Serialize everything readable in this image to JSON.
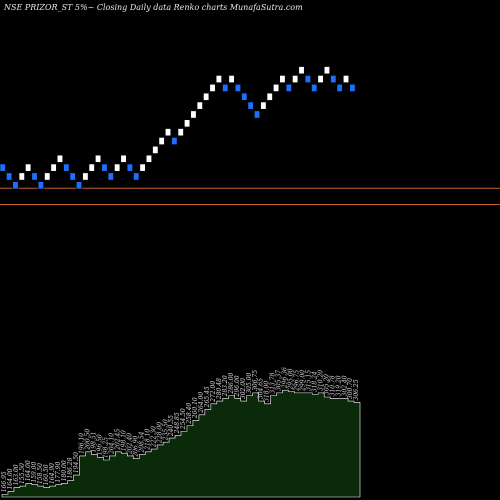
{
  "chart_data": {
    "type": "renko",
    "title": "NSE PRIZOR_ST 5%~ Closing Daily data Renko charts MunafaSutra.com",
    "colors": {
      "background": "#000000",
      "up_brick": "#ffffff",
      "down_brick": "#1e6fff",
      "reference_line": "#c8622a",
      "volume_fill": "#0a2a0a",
      "volume_edge": "#ffffff"
    },
    "reference_levels": [
      175,
      186
    ],
    "price_range": [
      90,
      300
    ],
    "bricks": [
      {
        "dir": "down",
        "level": 200
      },
      {
        "dir": "down",
        "level": 194
      },
      {
        "dir": "down",
        "level": 188
      },
      {
        "dir": "up",
        "level": 194
      },
      {
        "dir": "up",
        "level": 200
      },
      {
        "dir": "down",
        "level": 194
      },
      {
        "dir": "down",
        "level": 188
      },
      {
        "dir": "up",
        "level": 194
      },
      {
        "dir": "up",
        "level": 200
      },
      {
        "dir": "up",
        "level": 206
      },
      {
        "dir": "down",
        "level": 200
      },
      {
        "dir": "down",
        "level": 194
      },
      {
        "dir": "down",
        "level": 188
      },
      {
        "dir": "up",
        "level": 194
      },
      {
        "dir": "up",
        "level": 200
      },
      {
        "dir": "up",
        "level": 206
      },
      {
        "dir": "down",
        "level": 200
      },
      {
        "dir": "down",
        "level": 194
      },
      {
        "dir": "up",
        "level": 200
      },
      {
        "dir": "up",
        "level": 206
      },
      {
        "dir": "down",
        "level": 200
      },
      {
        "dir": "down",
        "level": 194
      },
      {
        "dir": "up",
        "level": 200
      },
      {
        "dir": "up",
        "level": 206
      },
      {
        "dir": "up",
        "level": 212
      },
      {
        "dir": "up",
        "level": 218
      },
      {
        "dir": "up",
        "level": 224
      },
      {
        "dir": "down",
        "level": 218
      },
      {
        "dir": "up",
        "level": 224
      },
      {
        "dir": "up",
        "level": 230
      },
      {
        "dir": "up",
        "level": 236
      },
      {
        "dir": "up",
        "level": 242
      },
      {
        "dir": "up",
        "level": 248
      },
      {
        "dir": "up",
        "level": 254
      },
      {
        "dir": "up",
        "level": 260
      },
      {
        "dir": "down",
        "level": 254
      },
      {
        "dir": "up",
        "level": 260
      },
      {
        "dir": "down",
        "level": 254
      },
      {
        "dir": "down",
        "level": 248
      },
      {
        "dir": "down",
        "level": 242
      },
      {
        "dir": "down",
        "level": 236
      },
      {
        "dir": "up",
        "level": 242
      },
      {
        "dir": "up",
        "level": 248
      },
      {
        "dir": "up",
        "level": 254
      },
      {
        "dir": "up",
        "level": 260
      },
      {
        "dir": "down",
        "level": 254
      },
      {
        "dir": "up",
        "level": 260
      },
      {
        "dir": "up",
        "level": 266
      },
      {
        "dir": "down",
        "level": 260
      },
      {
        "dir": "down",
        "level": 254
      },
      {
        "dir": "up",
        "level": 260
      },
      {
        "dir": "up",
        "level": 266
      },
      {
        "dir": "down",
        "level": 260
      },
      {
        "dir": "down",
        "level": 254
      },
      {
        "dir": "up",
        "level": 260
      },
      {
        "dir": "down",
        "level": 254
      }
    ],
    "volume": {
      "values": [
        2,
        4,
        7,
        8,
        10,
        9,
        8,
        7,
        8,
        9,
        10,
        12,
        16,
        30,
        33,
        31,
        29,
        27,
        30,
        33,
        32,
        30,
        28,
        31,
        33,
        35,
        38,
        40,
        43,
        45,
        48,
        52,
        56,
        60,
        64,
        68,
        70,
        72,
        74,
        72,
        70,
        74,
        76,
        70,
        68,
        74,
        76,
        78,
        77,
        76,
        76,
        76,
        75,
        76,
        73,
        72,
        72,
        72,
        70,
        69
      ],
      "labels": [
        "166.95",
        "164.00",
        "163.00",
        "155.50",
        "164.00",
        "159.00",
        "158.50",
        "160.50",
        "164.90",
        "177.90",
        "180.00",
        "186.28",
        "194.50",
        "196.10",
        "200.50",
        "198.51",
        "196.50",
        "198.25",
        "204.10",
        "202.45",
        "198.10",
        "202.40",
        "206.90",
        "208.54",
        "218.10",
        "222.30",
        "228.00",
        "235.50",
        "240.55",
        "248.85",
        "254.50",
        "258.40",
        "260.10",
        "264.00",
        "265.45",
        "272.00",
        "280.48",
        "283.20",
        "286.00",
        "296.00",
        "302.00",
        "305.00",
        "306.75",
        "304.65",
        "318.00",
        "313.78",
        "305.37",
        "296.36",
        "295.00",
        "296.75",
        "299.00",
        "315.15",
        "318.24",
        "310.20",
        "305.20",
        "310.78",
        "319.20",
        "302.40",
        "300.70",
        "306.25"
      ]
    }
  }
}
